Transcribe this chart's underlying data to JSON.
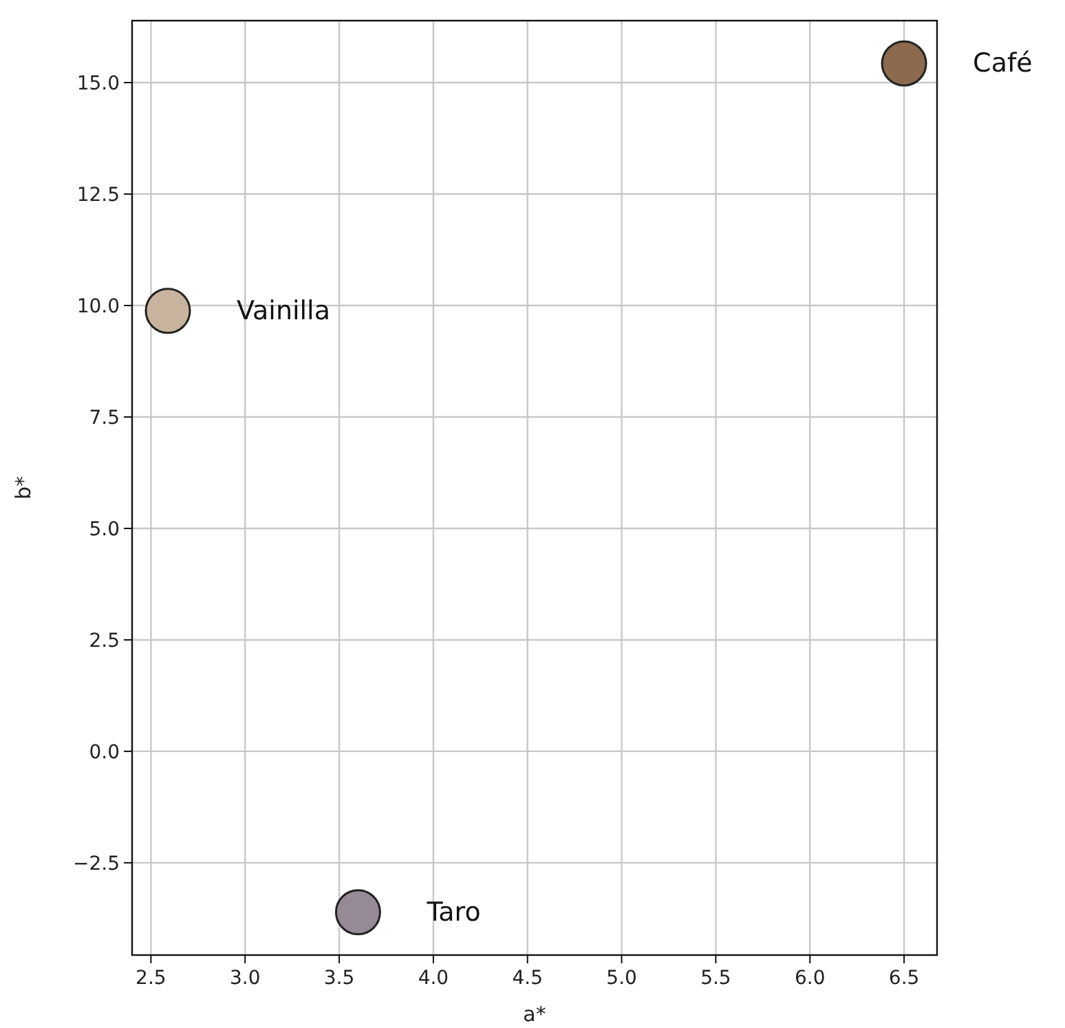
{
  "chart_data": {
    "type": "scatter",
    "xlabel": "a*",
    "ylabel": "b*",
    "xlim": [
      2.4,
      6.675
    ],
    "ylim": [
      -4.57,
      16.39
    ],
    "xticks": [
      2.5,
      {
        "value": 3,
        "label": "3.0"
      },
      3.5,
      {
        "value": 4,
        "label": "4.0"
      },
      4.5,
      {
        "value": 5,
        "label": "5.0"
      },
      5.5,
      {
        "value": 6,
        "label": "6.0"
      },
      6.5
    ],
    "yticks": [
      {
        "value": -2.5,
        "label": "−2.5"
      },
      {
        "value": 0,
        "label": "0.0"
      },
      {
        "value": 2.5,
        "label": "2.5"
      },
      {
        "value": 5,
        "label": "5.0"
      },
      {
        "value": 7.5,
        "label": "7.5"
      },
      {
        "value": 10,
        "label": "10.0"
      },
      {
        "value": 12.5,
        "label": "12.5"
      },
      {
        "value": 15,
        "label": "15.0"
      }
    ],
    "grid": true,
    "marker": "circle",
    "series": [
      {
        "name": "Café",
        "color": "#8b6a4f",
        "x": [
          6.5
        ],
        "values": [
          15.43
        ]
      },
      {
        "name": "Vainilla",
        "color": "#c8b49e",
        "x": [
          2.59
        ],
        "values": [
          9.88
        ]
      },
      {
        "name": "Taro",
        "color": "#958a95",
        "x": [
          3.6
        ],
        "values": [
          -3.61
        ]
      }
    ]
  }
}
